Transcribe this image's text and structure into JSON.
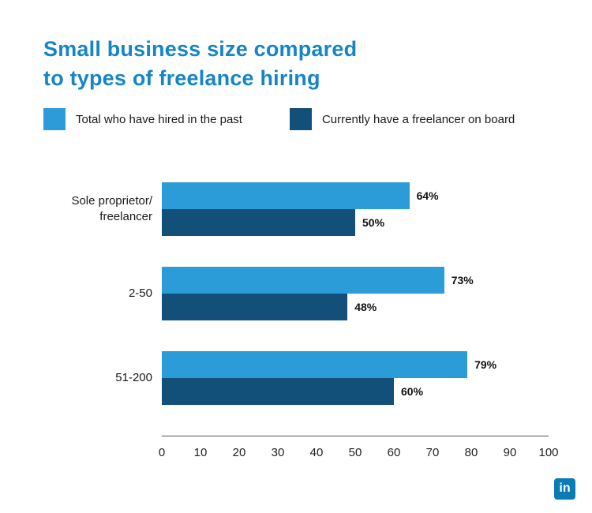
{
  "title": {
    "line1": "Small business size compared",
    "line2": "to types of freelance hiring",
    "color": "#1585c5"
  },
  "legend": [
    {
      "label": "Total who have hired in the past",
      "color": "#2b9cd8"
    },
    {
      "label": "Currently have a freelancer on board",
      "color": "#124f79"
    }
  ],
  "chart_data": {
    "type": "bar",
    "orientation": "horizontal",
    "title": "Small business size compared to types of freelance hiring",
    "categories": [
      "Sole proprietor/\nfreelancer",
      "2-50",
      "51-200"
    ],
    "series": [
      {
        "name": "Total who have hired in the past",
        "color": "#2b9cd8",
        "values": [
          64,
          73,
          79
        ]
      },
      {
        "name": "Currently have a freelancer on board",
        "color": "#124f79",
        "values": [
          50,
          48,
          60
        ]
      }
    ],
    "xlim": [
      0,
      100
    ],
    "ticks": [
      0,
      10,
      20,
      30,
      40,
      50,
      60,
      70,
      80,
      90,
      100
    ],
    "value_suffix": "%",
    "grid": false,
    "legend_position": "top"
  },
  "footer": {
    "logo_name": "LinkedIn",
    "logo_text": "in",
    "logo_color": "#0a7cb5"
  }
}
